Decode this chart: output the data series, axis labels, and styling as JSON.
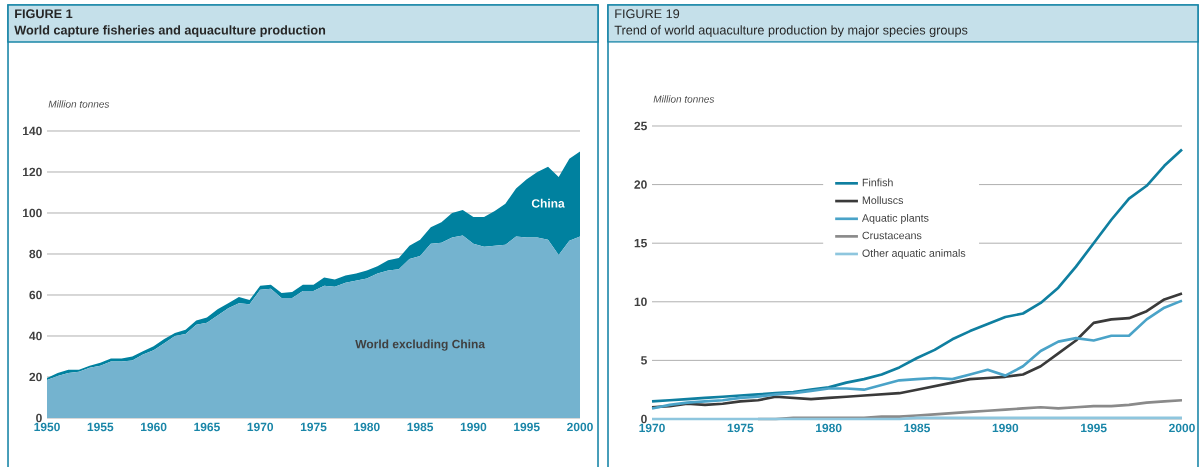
{
  "chart_data": [
    {
      "type": "area",
      "stacked": true,
      "title": "FIGURE 1",
      "subtitle": "World capture fisheries and aquaculture production",
      "ylabel": "Million tonnes",
      "x": [
        1950,
        1951,
        1952,
        1953,
        1954,
        1955,
        1956,
        1957,
        1958,
        1959,
        1960,
        1961,
        1962,
        1963,
        1964,
        1965,
        1966,
        1967,
        1968,
        1969,
        1970,
        1971,
        1972,
        1973,
        1974,
        1975,
        1976,
        1977,
        1978,
        1979,
        1980,
        1981,
        1982,
        1983,
        1984,
        1985,
        1986,
        1987,
        1988,
        1989,
        1990,
        1991,
        1992,
        1993,
        1994,
        1995,
        1996,
        1997,
        1998,
        1999,
        2000
      ],
      "series": [
        {
          "name": "World excluding China",
          "color": "#74b3cf",
          "values": [
            18.5,
            20.5,
            22,
            22.5,
            24.5,
            25.5,
            27.5,
            27.5,
            28,
            31,
            33,
            36.5,
            40,
            41,
            45.5,
            46.5,
            50,
            53.5,
            56,
            55.5,
            62.5,
            63,
            58.5,
            58.5,
            62,
            62,
            64.5,
            64,
            66,
            67,
            68,
            70.5,
            72,
            72.5,
            77.5,
            79,
            85,
            85.5,
            88,
            89,
            85,
            83.5,
            84,
            84.5,
            88.5,
            88,
            88,
            87,
            79.5,
            86.5,
            88.5
          ]
        },
        {
          "name": "China",
          "color": "#00819f",
          "values": [
            1,
            1.5,
            1.5,
            1,
            1,
            1.5,
            1.5,
            1.5,
            2,
            1.5,
            2,
            2,
            1.5,
            2,
            2,
            2.5,
            3,
            2.5,
            3,
            2,
            2,
            2,
            2.5,
            3,
            3,
            3,
            4,
            3.5,
            3.5,
            3.5,
            4,
            3.5,
            5,
            5.5,
            6.5,
            8,
            8,
            10,
            12,
            12.5,
            13,
            14.5,
            17,
            20,
            23.5,
            28.5,
            32,
            35.5,
            38,
            40,
            41.5
          ]
        }
      ],
      "xlim": [
        1950,
        2000
      ],
      "ylim": [
        0,
        140
      ],
      "xticks": [
        1950,
        1955,
        1960,
        1965,
        1970,
        1975,
        1980,
        1985,
        1990,
        1995,
        2000
      ],
      "yticks": [
        0,
        20,
        40,
        60,
        80,
        100,
        120,
        140
      ],
      "grid": "y",
      "legend": false
    },
    {
      "type": "line",
      "title": "FIGURE 19",
      "subtitle": "Trend of world aquaculture production by major species groups",
      "ylabel": "Million tonnes",
      "x": [
        1970,
        1971,
        1972,
        1973,
        1974,
        1975,
        1976,
        1977,
        1978,
        1979,
        1980,
        1981,
        1982,
        1983,
        1984,
        1985,
        1986,
        1987,
        1988,
        1989,
        1990,
        1991,
        1992,
        1993,
        1994,
        1995,
        1996,
        1997,
        1998,
        1999,
        2000
      ],
      "series": [
        {
          "name": "Finfish",
          "color": "#0f7fa0",
          "values": [
            1.5,
            1.6,
            1.7,
            1.8,
            1.9,
            2.0,
            2.1,
            2.2,
            2.3,
            2.5,
            2.7,
            3.1,
            3.4,
            3.8,
            4.4,
            5.2,
            5.9,
            6.8,
            7.5,
            8.1,
            8.7,
            9.0,
            9.9,
            11.2,
            13.0,
            15.0,
            17.0,
            18.8,
            19.9,
            21.6,
            23.0
          ]
        },
        {
          "name": "Molluscs",
          "color": "#3a3a3a",
          "values": [
            1.0,
            1.1,
            1.3,
            1.2,
            1.3,
            1.5,
            1.6,
            1.9,
            1.8,
            1.7,
            1.8,
            1.9,
            2.0,
            2.1,
            2.2,
            2.5,
            2.8,
            3.1,
            3.4,
            3.5,
            3.6,
            3.8,
            4.5,
            5.6,
            6.7,
            8.2,
            8.5,
            8.6,
            9.2,
            10.2,
            10.7
          ]
        },
        {
          "name": "Aquatic plants",
          "color": "#4aa3c8",
          "values": [
            0.9,
            1.2,
            1.4,
            1.5,
            1.6,
            1.8,
            1.9,
            2.1,
            2.2,
            2.4,
            2.6,
            2.6,
            2.5,
            2.9,
            3.3,
            3.4,
            3.5,
            3.4,
            3.8,
            4.2,
            3.7,
            4.5,
            5.8,
            6.6,
            6.9,
            6.7,
            7.1,
            7.1,
            8.5,
            9.5,
            10.1
          ]
        },
        {
          "name": "Crustaceans",
          "color": "#8a8a8a",
          "values": [
            null,
            null,
            null,
            null,
            null,
            null,
            0,
            0,
            0.1,
            0.1,
            0.1,
            0.1,
            0.1,
            0.2,
            0.2,
            0.3,
            0.4,
            0.5,
            0.6,
            0.7,
            0.8,
            0.9,
            1.0,
            0.9,
            1.0,
            1.1,
            1.1,
            1.2,
            1.4,
            1.5,
            1.6
          ]
        },
        {
          "name": "Other aquatic animals",
          "color": "#8ec6de",
          "values": [
            0,
            0,
            0,
            0,
            0,
            0,
            0,
            0,
            0,
            0,
            0,
            0,
            0,
            0,
            0,
            0.1,
            0.1,
            0.1,
            0.1,
            0.1,
            0.1,
            0.1,
            0.1,
            0.1,
            0.1,
            0.1,
            0.1,
            0.1,
            0.1,
            0.1,
            0.1
          ]
        }
      ],
      "xlim": [
        1970,
        2000
      ],
      "ylim": [
        0,
        25
      ],
      "xticks": [
        1970,
        1975,
        1980,
        1985,
        1990,
        1995,
        2000
      ],
      "yticks": [
        0,
        5,
        10,
        15,
        20,
        25
      ],
      "grid": "y",
      "legend": "top"
    }
  ]
}
